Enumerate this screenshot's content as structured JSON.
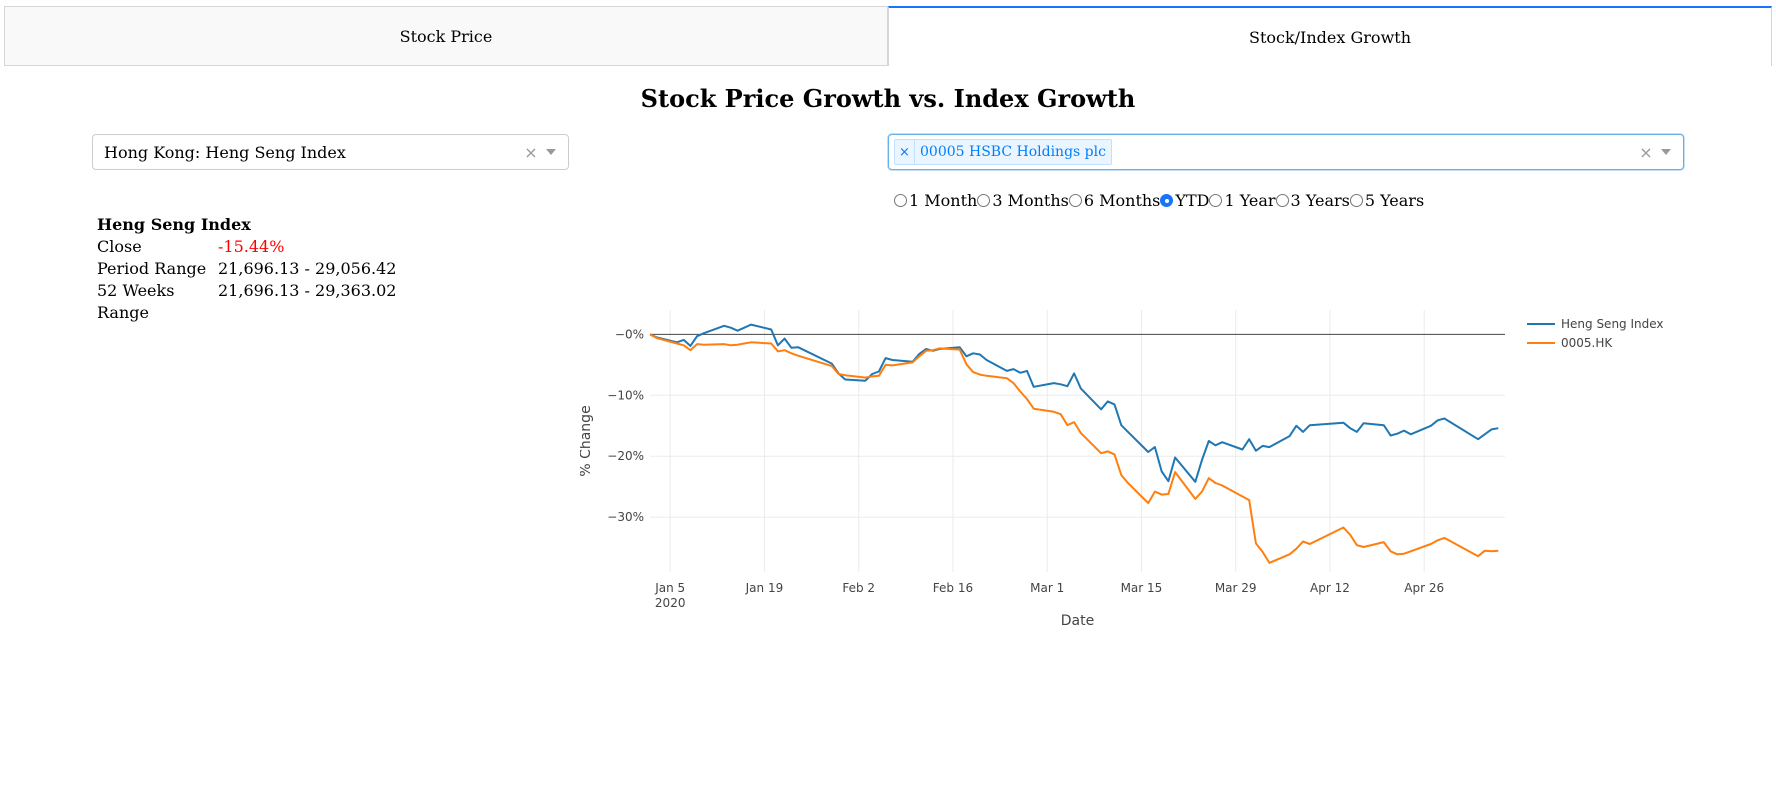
{
  "tabs": [
    {
      "label": "Stock Price",
      "active": false
    },
    {
      "label": "Stock/Index Growth",
      "active": true
    }
  ],
  "page_title": "Stock Price Growth vs. Index Growth",
  "index_dropdown": {
    "value": "Hong Kong: Heng Seng Index",
    "clear": "×"
  },
  "stock_dropdown": {
    "chip_label": "00005 HSBC Holdings plc",
    "chip_remove": "×",
    "clear": "×"
  },
  "periods": {
    "options": [
      "1 Month",
      "3 Months",
      "6 Months",
      "YTD",
      "1 Year",
      "3 Years",
      "5 Years"
    ],
    "selected": "YTD"
  },
  "index_info": {
    "title": "Heng Seng Index",
    "rows": [
      {
        "key": "Close",
        "value": "-15.44%",
        "negative": true
      },
      {
        "key": "Period Range",
        "value": "21,696.13 - 29,056.42"
      },
      {
        "key": "52 Weeks Range",
        "value": "21,696.13 - 29,363.02"
      }
    ]
  },
  "chart_data": {
    "type": "line",
    "xlabel": "Date",
    "ylabel": "% Change",
    "x_ticks": [
      {
        "date": "2020-01-05",
        "label": "Jan 5",
        "sublabel": "2020"
      },
      {
        "date": "2020-01-19",
        "label": "Jan 19"
      },
      {
        "date": "2020-02-02",
        "label": "Feb 2"
      },
      {
        "date": "2020-02-16",
        "label": "Feb 16"
      },
      {
        "date": "2020-03-01",
        "label": "Mar 1"
      },
      {
        "date": "2020-03-15",
        "label": "Mar 15"
      },
      {
        "date": "2020-03-29",
        "label": "Mar 29"
      },
      {
        "date": "2020-04-12",
        "label": "Apr 12"
      },
      {
        "date": "2020-04-26",
        "label": "Apr 26"
      }
    ],
    "y_ticks": [
      {
        "value": 0,
        "label": "−0%"
      },
      {
        "value": -10,
        "label": "−10%"
      },
      {
        "value": -20,
        "label": "−20%"
      },
      {
        "value": -30,
        "label": "−30%"
      }
    ],
    "xlim": [
      "2020-01-02",
      "2020-05-08"
    ],
    "ylim": [
      -39,
      4
    ],
    "grid": true,
    "zero_line": true,
    "legend_position": "right",
    "series": [
      {
        "name": "Heng Seng Index",
        "color": "#1f77b4",
        "points": [
          [
            "2020-01-02",
            0
          ],
          [
            "2020-01-03",
            -0.5
          ],
          [
            "2020-01-06",
            -1.3
          ],
          [
            "2020-01-07",
            -0.9
          ],
          [
            "2020-01-08",
            -1.9
          ],
          [
            "2020-01-09",
            -0.3
          ],
          [
            "2020-01-10",
            0.2
          ],
          [
            "2020-01-13",
            1.4
          ],
          [
            "2020-01-14",
            1.1
          ],
          [
            "2020-01-15",
            0.6
          ],
          [
            "2020-01-16",
            1.1
          ],
          [
            "2020-01-17",
            1.6
          ],
          [
            "2020-01-20",
            0.8
          ],
          [
            "2020-01-21",
            -1.8
          ],
          [
            "2020-01-22",
            -0.7
          ],
          [
            "2020-01-23",
            -2.2
          ],
          [
            "2020-01-24",
            -2.1
          ],
          [
            "2020-01-29",
            -4.8
          ],
          [
            "2020-01-30",
            -6.4
          ],
          [
            "2020-01-31",
            -7.4
          ],
          [
            "2020-02-03",
            -7.6
          ],
          [
            "2020-02-04",
            -6.5
          ],
          [
            "2020-02-05",
            -6.1
          ],
          [
            "2020-02-06",
            -3.9
          ],
          [
            "2020-02-07",
            -4.2
          ],
          [
            "2020-02-10",
            -4.5
          ],
          [
            "2020-02-11",
            -3.2
          ],
          [
            "2020-02-12",
            -2.4
          ],
          [
            "2020-02-13",
            -2.7
          ],
          [
            "2020-02-14",
            -2.4
          ],
          [
            "2020-02-17",
            -2.1
          ],
          [
            "2020-02-18",
            -3.6
          ],
          [
            "2020-02-19",
            -3.1
          ],
          [
            "2020-02-20",
            -3.3
          ],
          [
            "2020-02-21",
            -4.2
          ],
          [
            "2020-02-24",
            -6.0
          ],
          [
            "2020-02-25",
            -5.7
          ],
          [
            "2020-02-26",
            -6.3
          ],
          [
            "2020-02-27",
            -6.0
          ],
          [
            "2020-02-28",
            -8.6
          ],
          [
            "2020-03-02",
            -8.0
          ],
          [
            "2020-03-03",
            -8.2
          ],
          [
            "2020-03-04",
            -8.5
          ],
          [
            "2020-03-05",
            -6.4
          ],
          [
            "2020-03-06",
            -8.9
          ],
          [
            "2020-03-09",
            -12.3
          ],
          [
            "2020-03-10",
            -11.0
          ],
          [
            "2020-03-11",
            -11.5
          ],
          [
            "2020-03-12",
            -14.9
          ],
          [
            "2020-03-13",
            -16.0
          ],
          [
            "2020-03-16",
            -19.3
          ],
          [
            "2020-03-17",
            -18.5
          ],
          [
            "2020-03-18",
            -22.5
          ],
          [
            "2020-03-19",
            -24.1
          ],
          [
            "2020-03-20",
            -20.2
          ],
          [
            "2020-03-23",
            -24.2
          ],
          [
            "2020-03-24",
            -20.6
          ],
          [
            "2020-03-25",
            -17.5
          ],
          [
            "2020-03-26",
            -18.2
          ],
          [
            "2020-03-27",
            -17.7
          ],
          [
            "2020-03-30",
            -18.9
          ],
          [
            "2020-03-31",
            -17.2
          ],
          [
            "2020-04-01",
            -19.1
          ],
          [
            "2020-04-02",
            -18.3
          ],
          [
            "2020-04-03",
            -18.5
          ],
          [
            "2020-04-06",
            -16.7
          ],
          [
            "2020-04-07",
            -15.0
          ],
          [
            "2020-04-08",
            -16.0
          ],
          [
            "2020-04-09",
            -14.9
          ],
          [
            "2020-04-14",
            -14.5
          ],
          [
            "2020-04-15",
            -15.4
          ],
          [
            "2020-04-16",
            -16.0
          ],
          [
            "2020-04-17",
            -14.6
          ],
          [
            "2020-04-20",
            -14.9
          ],
          [
            "2020-04-21",
            -16.6
          ],
          [
            "2020-04-22",
            -16.3
          ],
          [
            "2020-04-23",
            -15.8
          ],
          [
            "2020-04-24",
            -16.4
          ],
          [
            "2020-04-27",
            -15.0
          ],
          [
            "2020-04-28",
            -14.1
          ],
          [
            "2020-04-29",
            -13.8
          ],
          [
            "2020-05-04",
            -17.2
          ],
          [
            "2020-05-05",
            -16.4
          ],
          [
            "2020-05-06",
            -15.6
          ],
          [
            "2020-05-07",
            -15.4
          ]
        ]
      },
      {
        "name": "0005.HK",
        "color": "#ff7f0e",
        "points": [
          [
            "2020-01-02",
            0
          ],
          [
            "2020-01-03",
            -0.6
          ],
          [
            "2020-01-06",
            -1.5
          ],
          [
            "2020-01-07",
            -1.8
          ],
          [
            "2020-01-08",
            -2.6
          ],
          [
            "2020-01-09",
            -1.6
          ],
          [
            "2020-01-10",
            -1.7
          ],
          [
            "2020-01-13",
            -1.6
          ],
          [
            "2020-01-14",
            -1.8
          ],
          [
            "2020-01-15",
            -1.7
          ],
          [
            "2020-01-16",
            -1.5
          ],
          [
            "2020-01-17",
            -1.3
          ],
          [
            "2020-01-20",
            -1.5
          ],
          [
            "2020-01-21",
            -2.8
          ],
          [
            "2020-01-22",
            -2.6
          ],
          [
            "2020-01-23",
            -3.1
          ],
          [
            "2020-01-24",
            -3.5
          ],
          [
            "2020-01-29",
            -5.2
          ],
          [
            "2020-01-30",
            -6.5
          ],
          [
            "2020-01-31",
            -6.7
          ],
          [
            "2020-02-03",
            -7.1
          ],
          [
            "2020-02-04",
            -6.9
          ],
          [
            "2020-02-05",
            -6.8
          ],
          [
            "2020-02-06",
            -5.0
          ],
          [
            "2020-02-07",
            -5.1
          ],
          [
            "2020-02-10",
            -4.6
          ],
          [
            "2020-02-11",
            -3.6
          ],
          [
            "2020-02-12",
            -2.7
          ],
          [
            "2020-02-13",
            -2.6
          ],
          [
            "2020-02-14",
            -2.3
          ],
          [
            "2020-02-17",
            -2.5
          ],
          [
            "2020-02-18",
            -4.9
          ],
          [
            "2020-02-19",
            -6.2
          ],
          [
            "2020-02-20",
            -6.6
          ],
          [
            "2020-02-21",
            -6.8
          ],
          [
            "2020-02-24",
            -7.2
          ],
          [
            "2020-02-25",
            -8.0
          ],
          [
            "2020-02-26",
            -9.4
          ],
          [
            "2020-02-27",
            -10.6
          ],
          [
            "2020-02-28",
            -12.2
          ],
          [
            "2020-03-02",
            -12.7
          ],
          [
            "2020-03-03",
            -13.1
          ],
          [
            "2020-03-04",
            -14.9
          ],
          [
            "2020-03-05",
            -14.4
          ],
          [
            "2020-03-06",
            -16.2
          ],
          [
            "2020-03-09",
            -19.5
          ],
          [
            "2020-03-10",
            -19.2
          ],
          [
            "2020-03-11",
            -19.7
          ],
          [
            "2020-03-12",
            -23.1
          ],
          [
            "2020-03-13",
            -24.4
          ],
          [
            "2020-03-16",
            -27.7
          ],
          [
            "2020-03-17",
            -25.8
          ],
          [
            "2020-03-18",
            -26.3
          ],
          [
            "2020-03-19",
            -26.2
          ],
          [
            "2020-03-20",
            -22.6
          ],
          [
            "2020-03-23",
            -27.0
          ],
          [
            "2020-03-24",
            -25.8
          ],
          [
            "2020-03-25",
            -23.6
          ],
          [
            "2020-03-26",
            -24.4
          ],
          [
            "2020-03-27",
            -24.8
          ],
          [
            "2020-03-31",
            -27.2
          ],
          [
            "2020-04-01",
            -34.3
          ],
          [
            "2020-04-02",
            -35.7
          ],
          [
            "2020-04-03",
            -37.5
          ],
          [
            "2020-04-06",
            -36.1
          ],
          [
            "2020-04-07",
            -35.2
          ],
          [
            "2020-04-08",
            -34.0
          ],
          [
            "2020-04-09",
            -34.4
          ],
          [
            "2020-04-14",
            -31.7
          ],
          [
            "2020-04-15",
            -32.9
          ],
          [
            "2020-04-16",
            -34.6
          ],
          [
            "2020-04-17",
            -34.9
          ],
          [
            "2020-04-20",
            -34.1
          ],
          [
            "2020-04-21",
            -35.6
          ],
          [
            "2020-04-22",
            -36.1
          ],
          [
            "2020-04-23",
            -36.0
          ],
          [
            "2020-04-24",
            -35.6
          ],
          [
            "2020-04-27",
            -34.4
          ],
          [
            "2020-04-28",
            -33.8
          ],
          [
            "2020-04-29",
            -33.4
          ],
          [
            "2020-05-04",
            -36.4
          ],
          [
            "2020-05-05",
            -35.5
          ],
          [
            "2020-05-06",
            -35.6
          ],
          [
            "2020-05-07",
            -35.5
          ]
        ]
      }
    ]
  }
}
